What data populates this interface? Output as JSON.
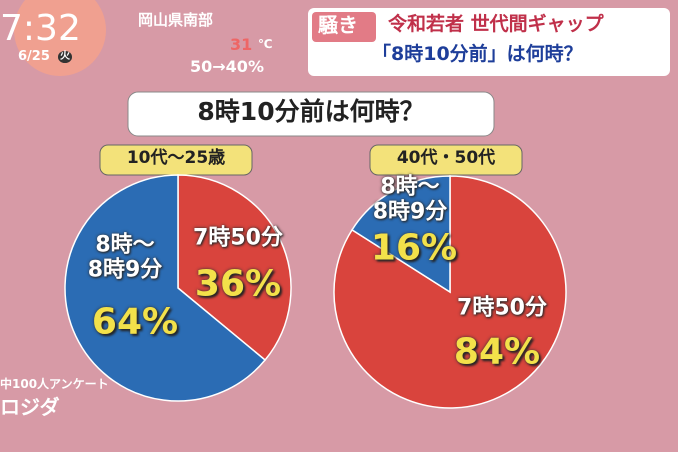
{
  "screen": {
    "time": "7:32",
    "date": "6/25",
    "weekday": "火",
    "region": "岡山県南部",
    "temp": "31",
    "temp_unit": "℃",
    "rain": "50→40%",
    "tag": "騒き",
    "headline1": "令和若者 世代間ギャップ",
    "headline2": "「8時10分前」は何時？",
    "title": "8時10分前は何時？",
    "footnote1": "中100人アンケート",
    "footnote2": "ロジダ"
  },
  "chart_data": [
    {
      "type": "pie",
      "title": "10代〜25歳",
      "categories": [
        "7時50分",
        "8時〜\n8時9分"
      ],
      "values": [
        36,
        64
      ],
      "value_labels": [
        "36%",
        "64%"
      ],
      "colors": [
        "#d9443d",
        "#2b6cb4"
      ]
    },
    {
      "type": "pie",
      "title": "40代・50代",
      "categories": [
        "7時50分",
        "8時〜\n8時9分"
      ],
      "values": [
        84,
        16
      ],
      "value_labels": [
        "84%",
        "16%"
      ],
      "colors": [
        "#d9443d",
        "#2b6cb4"
      ]
    }
  ]
}
